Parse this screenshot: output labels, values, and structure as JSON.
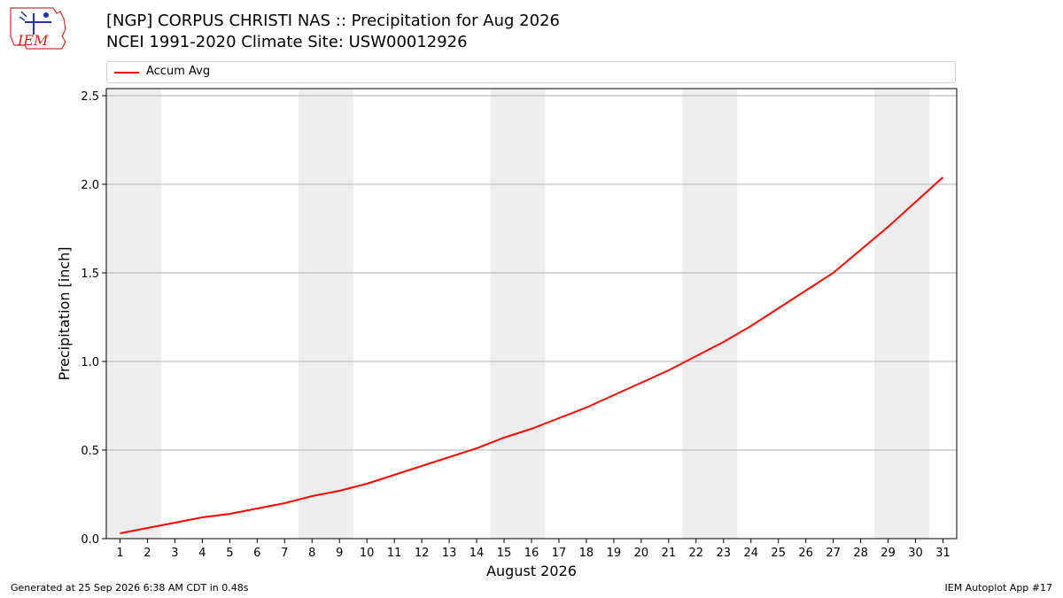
{
  "title_line1": "[NGP] CORPUS CHRISTI NAS :: Precipitation for Aug 2026",
  "title_line2": "NCEI 1991-2020 Climate Site: USW00012926",
  "logo_text": "IEM",
  "footer": {
    "generated": "Generated at 25 Sep 2026 6:38 AM CDT in 0.48s",
    "app": "IEM Autoplot App #17"
  },
  "colors": {
    "line": "#ff0000",
    "weekend_shade": "#eeeeee",
    "grid": "#b0b0b0"
  },
  "chart_data": {
    "type": "line",
    "xlabel": "August 2026",
    "ylabel": "Precipitation [inch]",
    "x": [
      1,
      2,
      3,
      4,
      5,
      6,
      7,
      8,
      9,
      10,
      11,
      12,
      13,
      14,
      15,
      16,
      17,
      18,
      19,
      20,
      21,
      22,
      23,
      24,
      25,
      26,
      27,
      28,
      29,
      30,
      31
    ],
    "series": [
      {
        "name": "Accum Avg",
        "values": [
          0.03,
          0.06,
          0.09,
          0.12,
          0.14,
          0.17,
          0.2,
          0.24,
          0.27,
          0.31,
          0.36,
          0.41,
          0.46,
          0.51,
          0.57,
          0.62,
          0.68,
          0.74,
          0.81,
          0.88,
          0.95,
          1.03,
          1.11,
          1.2,
          1.3,
          1.4,
          1.5,
          1.63,
          1.76,
          1.9,
          2.04
        ]
      }
    ],
    "xlim": [
      0.5,
      31.5
    ],
    "ylim": [
      0,
      2.54
    ],
    "yticks": [
      0.0,
      0.5,
      1.0,
      1.5,
      2.0,
      2.5
    ],
    "shaded_weekend_days": [
      [
        1,
        2
      ],
      [
        8,
        9
      ],
      [
        15,
        16
      ],
      [
        22,
        23
      ],
      [
        29,
        30
      ]
    ],
    "grid": "horizontal",
    "legend_position": "top"
  }
}
